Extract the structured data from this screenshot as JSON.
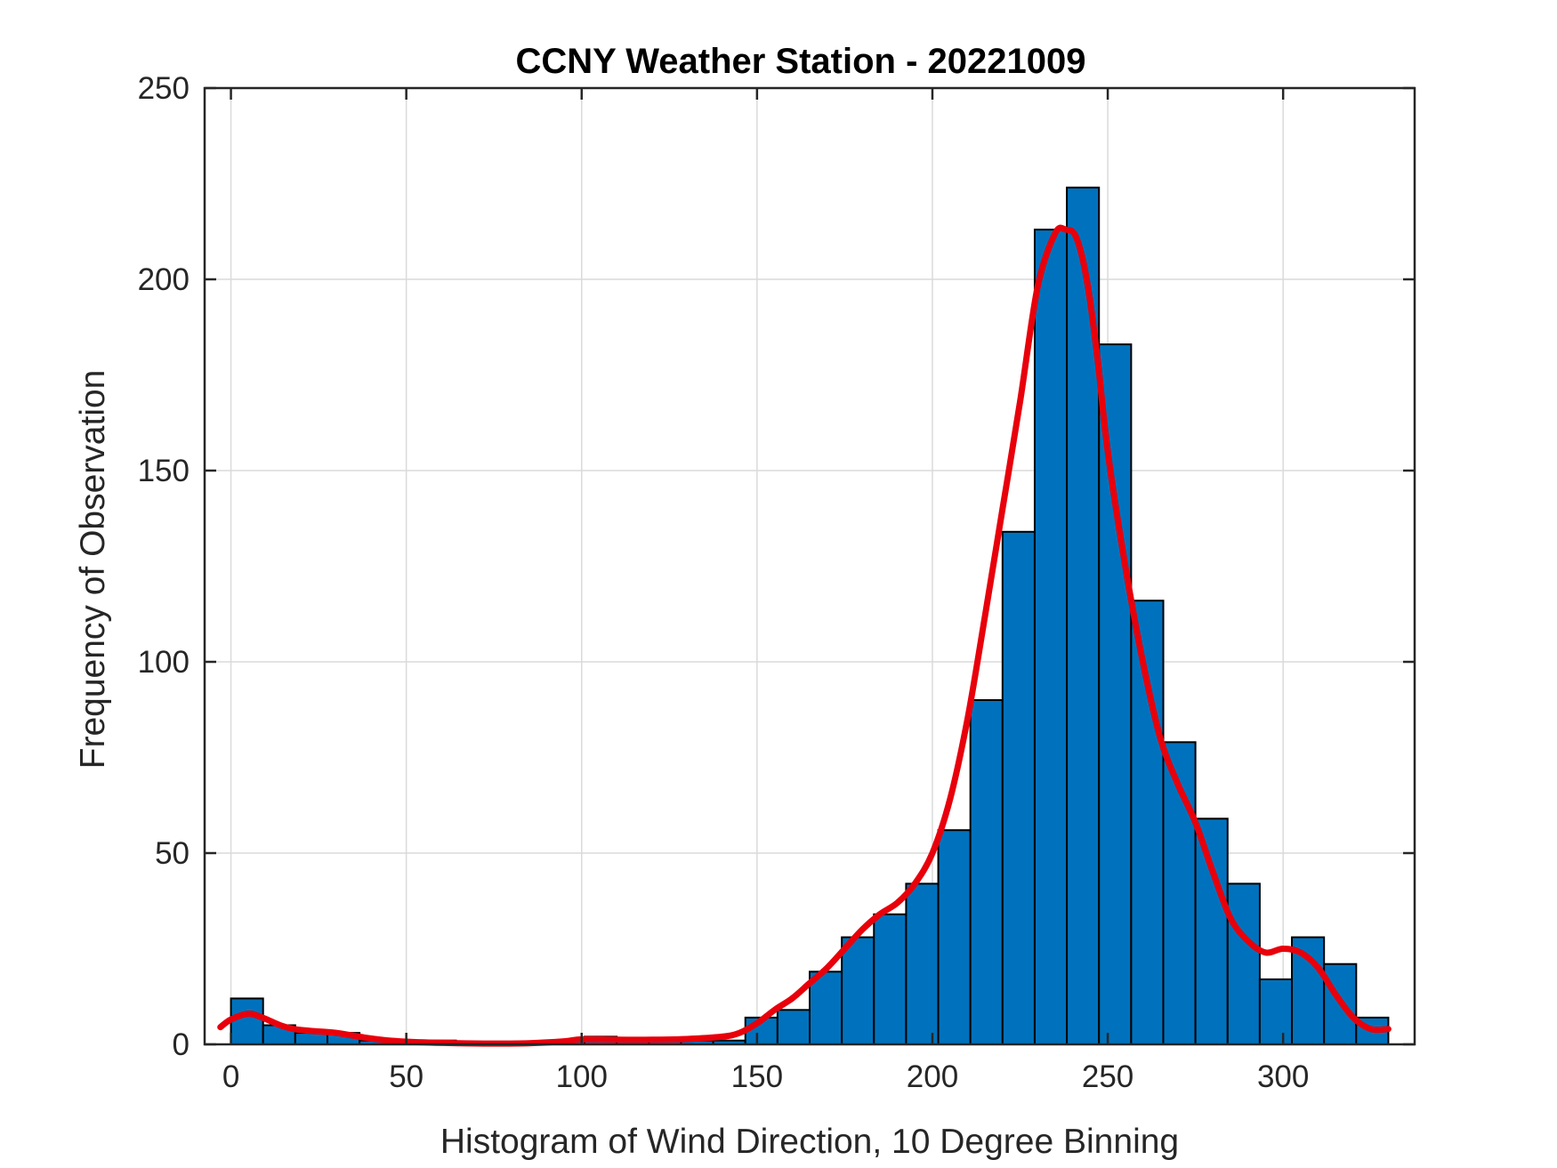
{
  "chart_data": {
    "type": "bar",
    "title": "CCNY Weather Station - 20221009",
    "xlabel": "Histogram of Wind Direction, 10 Degree Binning",
    "ylabel": "Frequency of Observation",
    "xlim": [
      -7.5,
      337.5
    ],
    "ylim": [
      0,
      250
    ],
    "bin_width": 9.17,
    "grid": true,
    "xticks": [
      0,
      50,
      100,
      150,
      200,
      250,
      300
    ],
    "yticks": [
      0,
      50,
      100,
      150,
      200,
      250
    ],
    "series": [
      {
        "name": "histogram",
        "bins": [
          {
            "left": 0.0,
            "count": 12
          },
          {
            "left": 9.17,
            "count": 5
          },
          {
            "left": 18.33,
            "count": 3
          },
          {
            "left": 27.5,
            "count": 3
          },
          {
            "left": 36.67,
            "count": 1
          },
          {
            "left": 45.83,
            "count": 1
          },
          {
            "left": 55.0,
            "count": 1
          },
          {
            "left": 64.17,
            "count": 0
          },
          {
            "left": 73.33,
            "count": 0
          },
          {
            "left": 82.5,
            "count": 0
          },
          {
            "left": 91.67,
            "count": 1
          },
          {
            "left": 100.83,
            "count": 2
          },
          {
            "left": 110.0,
            "count": 1
          },
          {
            "left": 119.17,
            "count": 1
          },
          {
            "left": 128.33,
            "count": 1
          },
          {
            "left": 137.5,
            "count": 1
          },
          {
            "left": 146.67,
            "count": 7
          },
          {
            "left": 155.83,
            "count": 9
          },
          {
            "left": 165.0,
            "count": 19
          },
          {
            "left": 174.17,
            "count": 28
          },
          {
            "left": 183.33,
            "count": 34
          },
          {
            "left": 192.5,
            "count": 42
          },
          {
            "left": 201.67,
            "count": 56
          },
          {
            "left": 210.83,
            "count": 90
          },
          {
            "left": 220.0,
            "count": 134
          },
          {
            "left": 229.17,
            "count": 213
          },
          {
            "left": 238.33,
            "count": 224
          },
          {
            "left": 247.5,
            "count": 183
          },
          {
            "left": 256.67,
            "count": 116
          },
          {
            "left": 265.83,
            "count": 79
          },
          {
            "left": 275.0,
            "count": 59
          },
          {
            "left": 284.17,
            "count": 42
          },
          {
            "left": 293.33,
            "count": 17
          },
          {
            "left": 302.5,
            "count": 28
          },
          {
            "left": 311.67,
            "count": 21
          },
          {
            "left": 320.83,
            "count": 7
          }
        ]
      },
      {
        "name": "density fit",
        "x": [
          -3,
          0,
          5,
          9,
          14,
          18,
          23,
          30,
          38,
          45,
          55,
          65,
          75,
          85,
          95,
          100,
          110,
          120,
          130,
          140,
          145,
          150,
          155,
          160,
          165,
          170,
          175,
          180,
          185,
          190,
          195,
          200,
          205,
          210,
          215,
          220,
          225,
          230,
          235,
          238,
          241,
          244,
          247,
          250,
          255,
          260,
          265,
          270,
          275,
          280,
          285,
          290,
          295,
          300,
          305,
          310,
          315,
          320,
          325,
          330
        ],
        "y": [
          4.5,
          6.5,
          8,
          7,
          5,
          4,
          3.5,
          3,
          1.8,
          1,
          0.5,
          0.3,
          0.2,
          0.3,
          0.8,
          1.3,
          1.2,
          1.2,
          1.4,
          2,
          3,
          5.5,
          9,
          12,
          16,
          20,
          25,
          30,
          34,
          37,
          42,
          50,
          64,
          85,
          112,
          140,
          168,
          198,
          212,
          213,
          211,
          200,
          180,
          155,
          125,
          100,
          80,
          68,
          58,
          45,
          33,
          27,
          24,
          25,
          24,
          20,
          13,
          7,
          4,
          4
        ]
      }
    ],
    "colors": {
      "bar_fill": "#0072BD",
      "bar_edge": "#000000",
      "fit_line": "#E8000B",
      "grid": "#DADADA",
      "axes": "#262626"
    }
  }
}
